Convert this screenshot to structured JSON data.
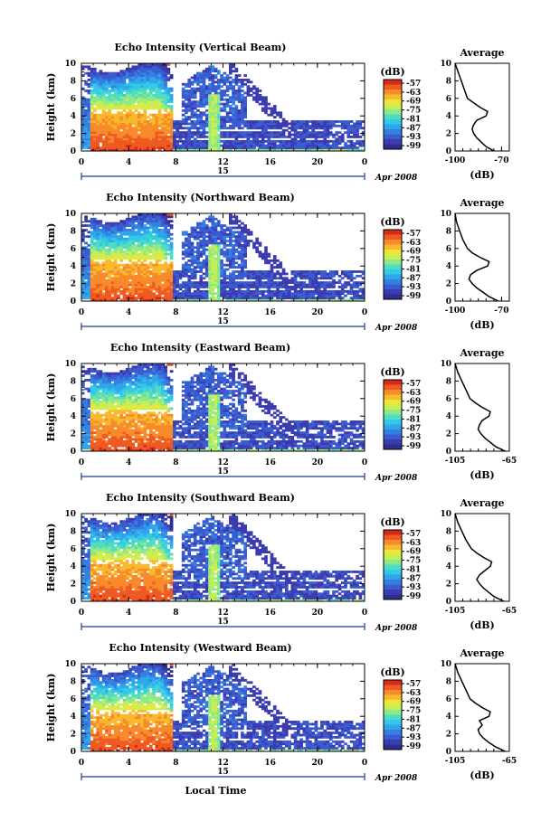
{
  "figure": {
    "xlabel": "Local Time",
    "colorbar_units": "(dB)",
    "colorbar_ticks": [
      "-57",
      "-63",
      "-69",
      "-75",
      "-81",
      "-87",
      "-93",
      "-99"
    ],
    "colorbar_colors": [
      "#d62a18",
      "#ef5a23",
      "#f78a2a",
      "#f7ba2c",
      "#ece63a",
      "#c7ee55",
      "#8de88a",
      "#4fdcc2",
      "#34c8e8",
      "#30a6ea",
      "#3480e2",
      "#3a5cd0",
      "#3c3cb0",
      "#2e2e8e"
    ],
    "date_day": "15",
    "date_label": "Apr 2008",
    "profile_title": "Average",
    "profile_xlabel": "(dB)"
  },
  "chart_data": [
    {
      "type": "heatmap",
      "title": "Echo Intensity (Vertical Beam)",
      "ylabel": "Height (km)",
      "xlim": [
        0,
        24
      ],
      "ylim": [
        0,
        10
      ],
      "xticks": [
        "0",
        "4",
        "8",
        "12",
        "16",
        "20",
        "0"
      ],
      "yticks": [
        "0",
        "2",
        "4",
        "6",
        "8",
        "10"
      ],
      "value_units": "dB",
      "color_range": [
        -99,
        -57
      ],
      "profile": {
        "title": "Average",
        "xlabel": "(dB)",
        "xlim": [
          -100,
          -65
        ],
        "xticks": [
          "-100",
          "-70"
        ],
        "points": [
          [
            -75,
            0
          ],
          [
            -80,
            0.5
          ],
          [
            -83,
            1
          ],
          [
            -86,
            1.5
          ],
          [
            -88,
            2
          ],
          [
            -89,
            2.5
          ],
          [
            -88,
            3
          ],
          [
            -86,
            3.5
          ],
          [
            -80,
            4
          ],
          [
            -79,
            4.5
          ],
          [
            -84,
            5
          ],
          [
            -88,
            5.5
          ],
          [
            -92,
            6
          ],
          [
            -94,
            7
          ],
          [
            -96,
            8
          ],
          [
            -98,
            9
          ],
          [
            -100,
            10
          ]
        ]
      }
    },
    {
      "type": "heatmap",
      "title": "Echo Intensity (Northward Beam)",
      "ylabel": "Height (km)",
      "xlim": [
        0,
        24
      ],
      "ylim": [
        0,
        10
      ],
      "xticks": [
        "0",
        "4",
        "8",
        "12",
        "16",
        "20",
        "0"
      ],
      "yticks": [
        "0",
        "2",
        "4",
        "6",
        "8",
        "10"
      ],
      "value_units": "dB",
      "color_range": [
        -99,
        -57
      ],
      "profile": {
        "title": "Average",
        "xlabel": "(dB)",
        "xlim": [
          -100,
          -65
        ],
        "xticks": [
          "-100",
          "-70"
        ],
        "points": [
          [
            -72,
            0
          ],
          [
            -78,
            0.5
          ],
          [
            -82,
            1
          ],
          [
            -86,
            1.5
          ],
          [
            -89,
            2
          ],
          [
            -91,
            2.5
          ],
          [
            -90,
            3
          ],
          [
            -86,
            3.5
          ],
          [
            -79,
            4
          ],
          [
            -78,
            4.5
          ],
          [
            -84,
            5
          ],
          [
            -89,
            5.5
          ],
          [
            -92,
            6
          ],
          [
            -95,
            7
          ],
          [
            -97,
            8
          ],
          [
            -99,
            9
          ],
          [
            -100,
            10
          ]
        ]
      }
    },
    {
      "type": "heatmap",
      "title": "Echo Intensity (Eastward Beam)",
      "ylabel": "Height (km)",
      "xlim": [
        0,
        24
      ],
      "ylim": [
        0,
        10
      ],
      "xticks": [
        "0",
        "4",
        "8",
        "12",
        "16",
        "20",
        "0"
      ],
      "yticks": [
        "0",
        "2",
        "4",
        "6",
        "8",
        "10"
      ],
      "value_units": "dB",
      "color_range": [
        -99,
        -57
      ],
      "profile": {
        "title": "Average",
        "xlabel": "(dB)",
        "xlim": [
          -105,
          -65
        ],
        "xticks": [
          "-105",
          "-65"
        ],
        "points": [
          [
            -68,
            0
          ],
          [
            -75,
            0.5
          ],
          [
            -79,
            1
          ],
          [
            -83,
            1.5
          ],
          [
            -86,
            2
          ],
          [
            -88,
            2.5
          ],
          [
            -87,
            3
          ],
          [
            -85,
            3.5
          ],
          [
            -80,
            4
          ],
          [
            -79,
            4.5
          ],
          [
            -85,
            5
          ],
          [
            -90,
            5.5
          ],
          [
            -94,
            6
          ],
          [
            -97,
            7
          ],
          [
            -100,
            8
          ],
          [
            -103,
            9
          ],
          [
            -105,
            10
          ]
        ]
      }
    },
    {
      "type": "heatmap",
      "title": "Echo Intensity (Southward Beam)",
      "ylabel": "Height (km)",
      "xlim": [
        0,
        24
      ],
      "ylim": [
        0,
        10
      ],
      "xticks": [
        "0",
        "4",
        "8",
        "12",
        "16",
        "20",
        "0"
      ],
      "yticks": [
        "0",
        "2",
        "4",
        "6",
        "8",
        "10"
      ],
      "value_units": "dB",
      "color_range": [
        -99,
        -57
      ],
      "profile": {
        "title": "Average",
        "xlabel": "(dB)",
        "xlim": [
          -105,
          -65
        ],
        "xticks": [
          "-105",
          "-65"
        ],
        "points": [
          [
            -69,
            0
          ],
          [
            -76,
            0.5
          ],
          [
            -80,
            1
          ],
          [
            -84,
            1.5
          ],
          [
            -87,
            2
          ],
          [
            -89,
            2.5
          ],
          [
            -87,
            3
          ],
          [
            -83,
            3.5
          ],
          [
            -79,
            4
          ],
          [
            -78,
            4.5
          ],
          [
            -84,
            5
          ],
          [
            -89,
            5.5
          ],
          [
            -93,
            6
          ],
          [
            -97,
            7
          ],
          [
            -100,
            8
          ],
          [
            -103,
            9
          ],
          [
            -105,
            10
          ]
        ]
      }
    },
    {
      "type": "heatmap",
      "title": "Echo Intensity (Westward Beam)",
      "ylabel": "Height (km)",
      "xlim": [
        0,
        24
      ],
      "ylim": [
        0,
        10
      ],
      "xticks": [
        "0",
        "4",
        "8",
        "12",
        "16",
        "20",
        "0"
      ],
      "yticks": [
        "0",
        "2",
        "4",
        "6",
        "8",
        "10"
      ],
      "value_units": "dB",
      "color_range": [
        -99,
        -57
      ],
      "profile": {
        "title": "Average",
        "xlabel": "(dB)",
        "xlim": [
          -105,
          -65
        ],
        "xticks": [
          "-105",
          "-65"
        ],
        "points": [
          [
            -68,
            0
          ],
          [
            -75,
            0.5
          ],
          [
            -80,
            1
          ],
          [
            -84,
            1.5
          ],
          [
            -87,
            2
          ],
          [
            -88,
            2.5
          ],
          [
            -85,
            3
          ],
          [
            -87,
            3.5
          ],
          [
            -80,
            4
          ],
          [
            -79,
            4.5
          ],
          [
            -85,
            5
          ],
          [
            -90,
            5.5
          ],
          [
            -94,
            6
          ],
          [
            -97,
            7
          ],
          [
            -100,
            8
          ],
          [
            -103,
            9
          ],
          [
            -105,
            10
          ]
        ]
      }
    }
  ]
}
